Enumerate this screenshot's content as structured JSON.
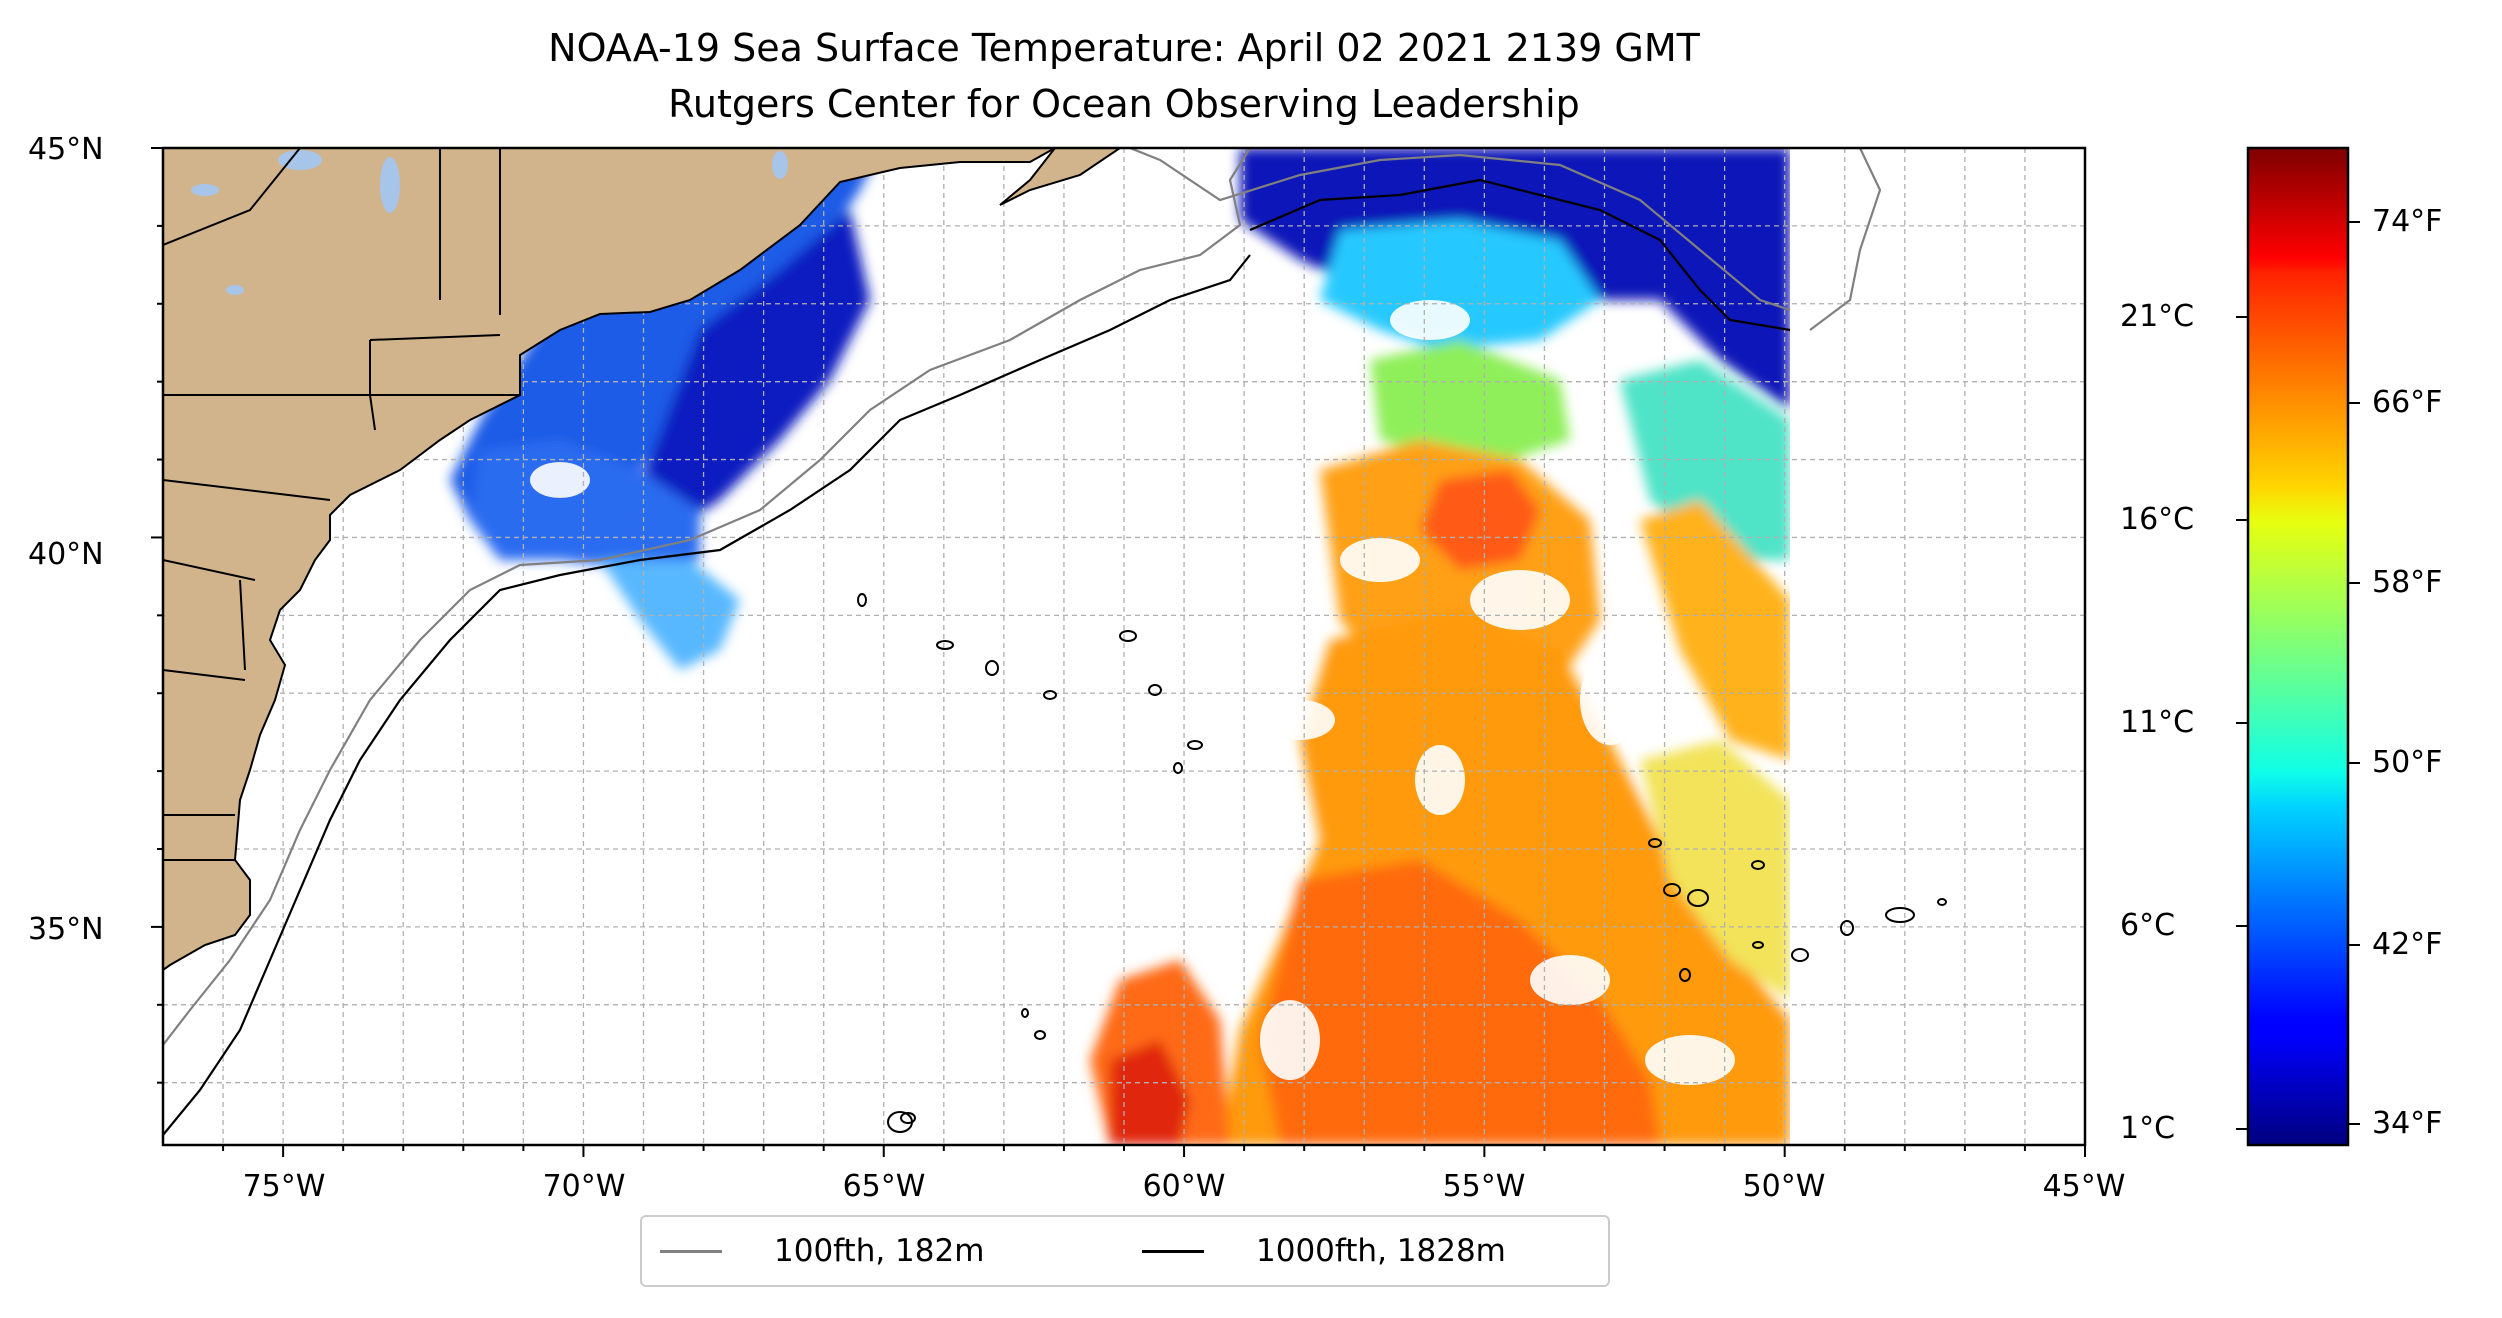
{
  "title": {
    "line1": "NOAA-19 Sea Surface Temperature: April 02 2021 2139 GMT",
    "line2": "Rutgers Center for Ocean Observing Leadership"
  },
  "map": {
    "lat_labels": [
      "45°N",
      "40°N",
      "35°N"
    ],
    "lon_labels": [
      "75°W",
      "70°W",
      "65°W",
      "60°W",
      "55°W",
      "50°W",
      "45°W"
    ],
    "extent": {
      "lon_min": -77,
      "lon_max": -45,
      "lat_min": 32.2,
      "lat_max": 45
    },
    "grid": true,
    "land_color": "#d2b48c",
    "lake_color": "#a6c5e8"
  },
  "colorbar": {
    "colormap": "jet",
    "celsius_labels": [
      "21°C",
      "16°C",
      "11°C",
      "6°C",
      "1°C"
    ],
    "fahrenheit_labels": [
      "74°F",
      "66°F",
      "58°F",
      "50°F",
      "42°F",
      "34°F"
    ]
  },
  "legend": {
    "placement": "bottom-center",
    "items": [
      {
        "label": "100fth, 182m",
        "color": "#808080"
      },
      {
        "label": "1000fth, 1828m",
        "color": "#000000"
      }
    ]
  }
}
